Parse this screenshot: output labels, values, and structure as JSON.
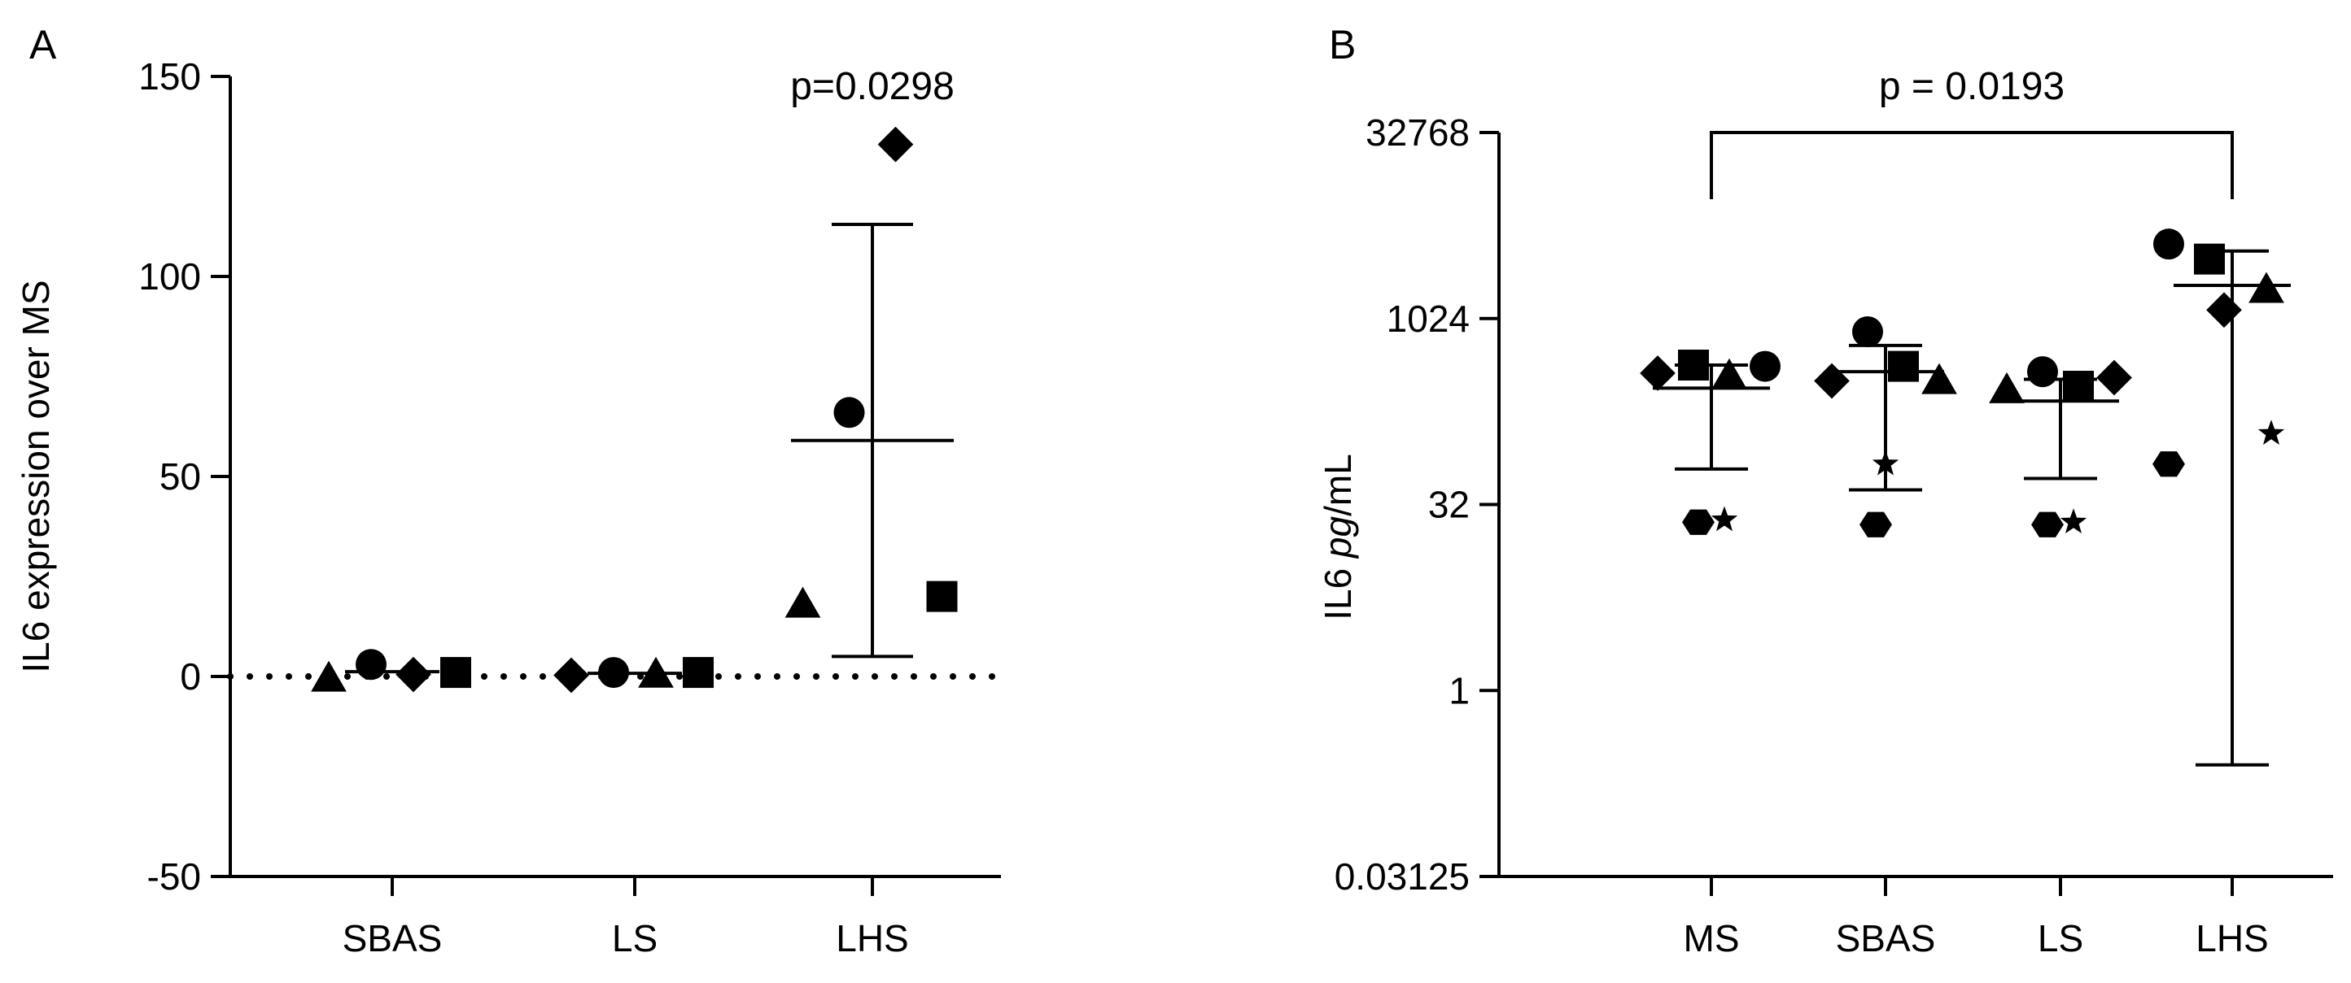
{
  "figure": {
    "panels": [
      "A",
      "B"
    ]
  },
  "chart_data": [
    {
      "panel": "A",
      "type": "scatter",
      "ylabel": "IL6 expression over MS",
      "ylim": [
        -50,
        150
      ],
      "yticks": [
        -50,
        0,
        50,
        100,
        150
      ],
      "ytick_labels": [
        "-50",
        "0",
        "50",
        "100",
        "150"
      ],
      "categories": [
        "SBAS",
        "LS",
        "LHS"
      ],
      "reference_line": {
        "y": 0,
        "style": "dotted"
      },
      "points": [
        {
          "category": "SBAS",
          "marker": "triangle",
          "y": -0.5
        },
        {
          "category": "SBAS",
          "marker": "circle",
          "y": 3
        },
        {
          "category": "SBAS",
          "marker": "diamond",
          "y": 0.5
        },
        {
          "category": "SBAS",
          "marker": "square",
          "y": 1
        },
        {
          "category": "LS",
          "marker": "diamond",
          "y": 0.3
        },
        {
          "category": "LS",
          "marker": "circle",
          "y": 1
        },
        {
          "category": "LS",
          "marker": "triangle",
          "y": 0.5
        },
        {
          "category": "LS",
          "marker": "square",
          "y": 1
        },
        {
          "category": "LHS",
          "marker": "triangle",
          "y": 18
        },
        {
          "category": "LHS",
          "marker": "circle",
          "y": 66
        },
        {
          "category": "LHS",
          "marker": "diamond",
          "y": 133
        },
        {
          "category": "LHS",
          "marker": "square",
          "y": 20
        }
      ],
      "summary": [
        {
          "category": "SBAS",
          "mean": 1.2,
          "lower": 1.2,
          "upper": 1.2
        },
        {
          "category": "LS",
          "mean": 0.8,
          "lower": 0.8,
          "upper": 0.8
        },
        {
          "category": "LHS",
          "mean": 59,
          "lower": 5,
          "upper": 113
        }
      ],
      "annotations": [
        {
          "text": "p=0.0298",
          "category": "LHS"
        }
      ]
    },
    {
      "panel": "B",
      "type": "scatter",
      "ylabel_prefix": "IL6 ",
      "ylabel_italic": "pg",
      "ylabel_suffix": "/mL",
      "yscale": "log2",
      "ylim": [
        0.03125,
        32768
      ],
      "yticks": [
        0.03125,
        1,
        32,
        1024,
        32768
      ],
      "ytick_labels": [
        "0.03125",
        "1",
        "32",
        "1024",
        "32768"
      ],
      "categories": [
        "MS",
        "SBAS",
        "LS",
        "LHS"
      ],
      "points": [
        {
          "category": "MS",
          "marker": "diamond",
          "y": 370
        },
        {
          "category": "MS",
          "marker": "square",
          "y": 430
        },
        {
          "category": "MS",
          "marker": "triangle",
          "y": 350
        },
        {
          "category": "MS",
          "marker": "circle",
          "y": 420
        },
        {
          "category": "MS",
          "marker": "hexagon",
          "y": 23
        },
        {
          "category": "MS",
          "marker": "star",
          "y": 24
        },
        {
          "category": "SBAS",
          "marker": "diamond",
          "y": 320
        },
        {
          "category": "SBAS",
          "marker": "circle",
          "y": 800
        },
        {
          "category": "SBAS",
          "marker": "square",
          "y": 420
        },
        {
          "category": "SBAS",
          "marker": "triangle",
          "y": 320
        },
        {
          "category": "SBAS",
          "marker": "star",
          "y": 68
        },
        {
          "category": "SBAS",
          "marker": "hexagon",
          "y": 22
        },
        {
          "category": "LS",
          "marker": "triangle",
          "y": 270
        },
        {
          "category": "LS",
          "marker": "circle",
          "y": 380
        },
        {
          "category": "LS",
          "marker": "square",
          "y": 290
        },
        {
          "category": "LS",
          "marker": "diamond",
          "y": 340
        },
        {
          "category": "LS",
          "marker": "hexagon",
          "y": 22
        },
        {
          "category": "LS",
          "marker": "star",
          "y": 23
        },
        {
          "category": "LHS",
          "marker": "circle",
          "y": 4100
        },
        {
          "category": "LHS",
          "marker": "square",
          "y": 3100
        },
        {
          "category": "LHS",
          "marker": "diamond",
          "y": 1200
        },
        {
          "category": "LHS",
          "marker": "triangle",
          "y": 1750
        },
        {
          "category": "LHS",
          "marker": "hexagon",
          "y": 68
        },
        {
          "category": "LHS",
          "marker": "star",
          "y": 120
        }
      ],
      "summary": [
        {
          "category": "MS",
          "mean": 280,
          "lower": 62,
          "upper": 430
        },
        {
          "category": "SBAS",
          "mean": 380,
          "lower": 42,
          "upper": 620
        },
        {
          "category": "LS",
          "mean": 220,
          "lower": 52,
          "upper": 330
        },
        {
          "category": "LHS",
          "mean": 1900,
          "lower": 0.25,
          "upper": 3600
        }
      ],
      "comparison": {
        "from": "MS",
        "to": "LHS",
        "text": "p = 0.0193"
      }
    }
  ]
}
